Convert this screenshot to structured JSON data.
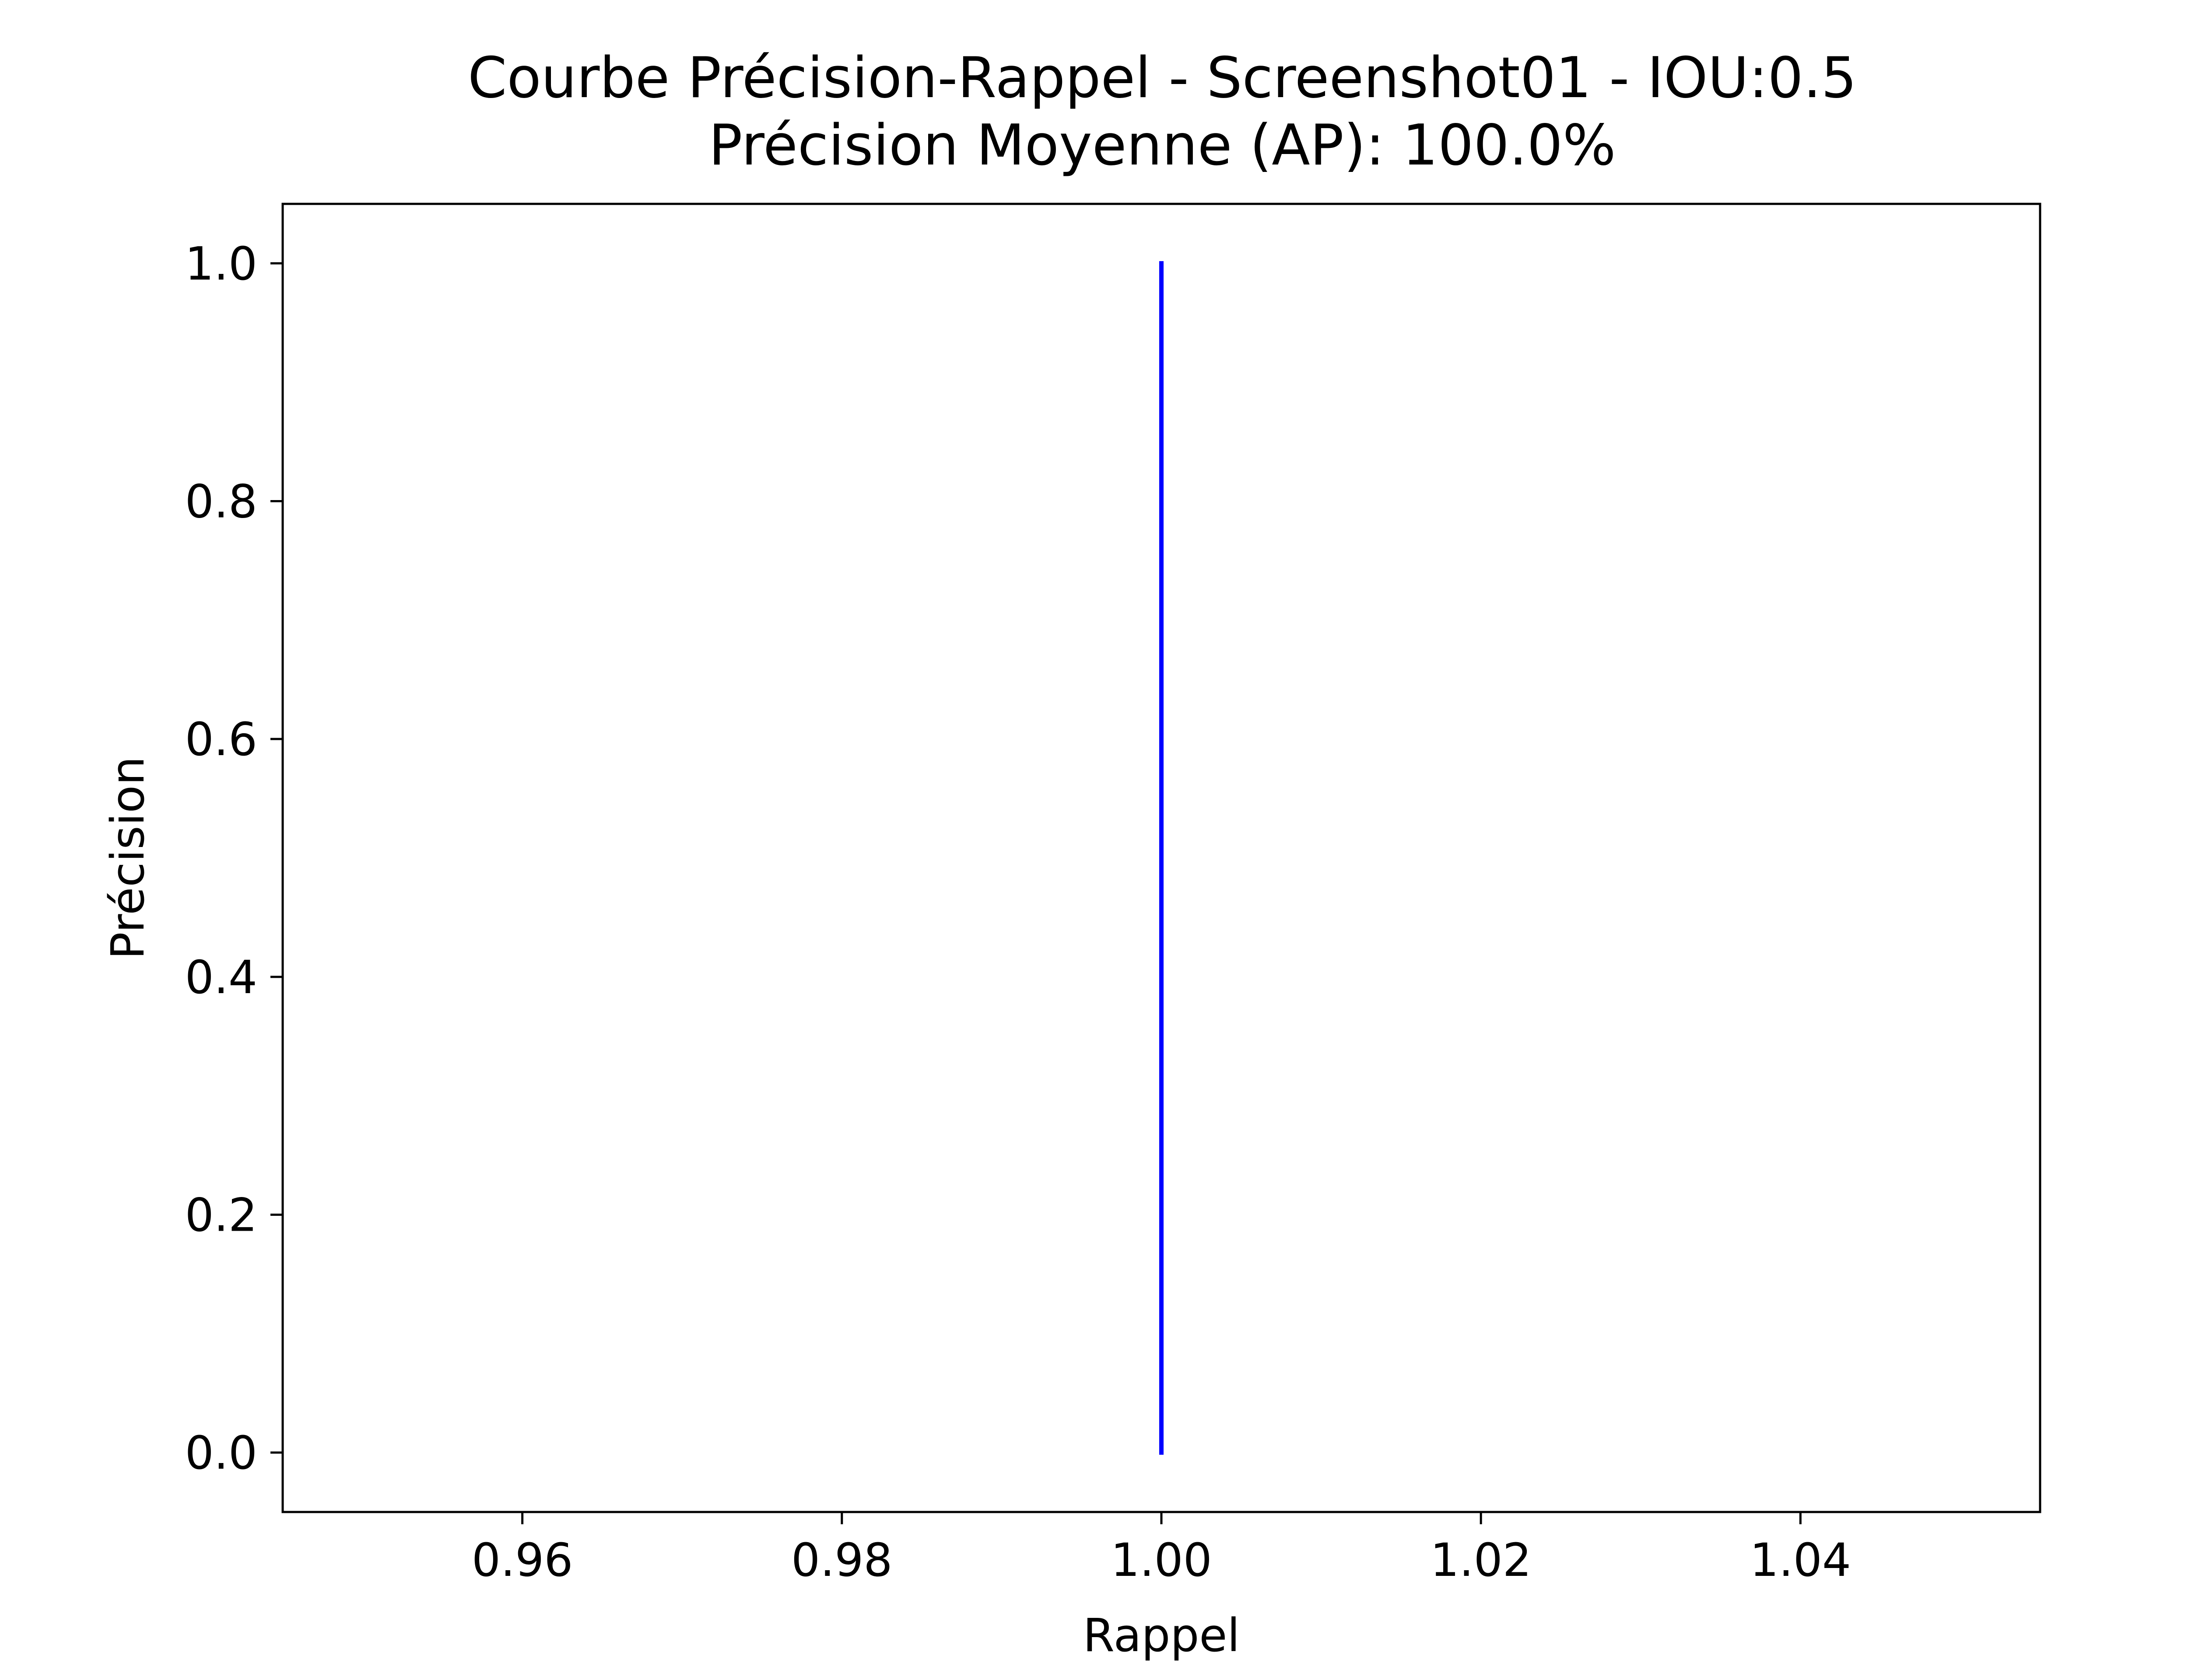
{
  "chart_data": {
    "type": "line",
    "title": "Courbe Précision-Rappel - Screenshot01 - IOU:0.5",
    "subtitle": "Précision Moyenne (AP): 100.0%",
    "xlabel": "Rappel",
    "ylabel": "Précision",
    "xlim": [
      0.945,
      1.055
    ],
    "ylim": [
      -0.05,
      1.05
    ],
    "xticks": [
      0.96,
      0.98,
      1.0,
      1.02,
      1.04
    ],
    "xtick_labels": [
      "0.96",
      "0.98",
      "1.00",
      "1.02",
      "1.04"
    ],
    "yticks": [
      0.0,
      0.2,
      0.4,
      0.6,
      0.8,
      1.0
    ],
    "ytick_labels": [
      "0.0",
      "0.2",
      "0.4",
      "0.6",
      "0.8",
      "1.0"
    ],
    "grid": false,
    "series": [
      {
        "color": "#0000ff",
        "x": [
          1.0,
          1.0
        ],
        "y": [
          1.0,
          0.0
        ]
      }
    ]
  }
}
